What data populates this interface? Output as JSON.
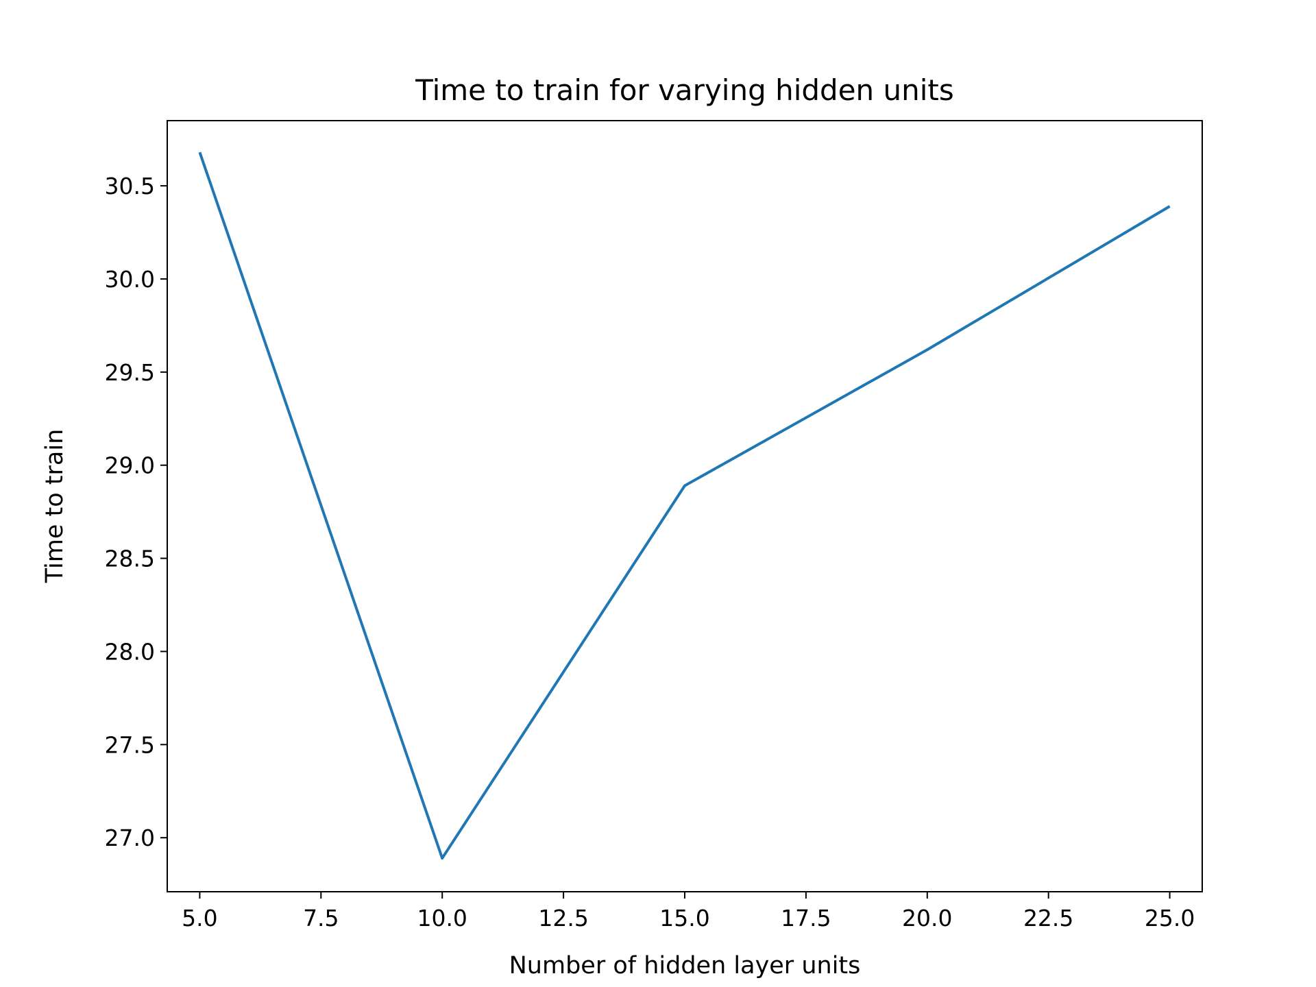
{
  "chart_data": {
    "type": "line",
    "title": "Time to train for varying hidden units",
    "xlabel": "Number of hidden layer units",
    "ylabel": "Time to train",
    "xlim": [
      4.33,
      25.67
    ],
    "ylim": [
      26.71,
      30.85
    ],
    "x_ticks": [
      5.0,
      7.5,
      10.0,
      12.5,
      15.0,
      17.5,
      20.0,
      22.5,
      25.0
    ],
    "x_tick_labels": [
      "5.0",
      "7.5",
      "10.0",
      "12.5",
      "15.0",
      "17.5",
      "20.0",
      "22.5",
      "25.0"
    ],
    "y_ticks": [
      27.0,
      27.5,
      28.0,
      28.5,
      29.0,
      29.5,
      30.0,
      30.5
    ],
    "y_tick_labels": [
      "27.0",
      "27.5",
      "28.0",
      "28.5",
      "29.0",
      "29.5",
      "30.0",
      "30.5"
    ],
    "grid": false,
    "legend": "none",
    "series": [
      {
        "x": [
          5,
          10,
          15,
          20,
          25
        ],
        "y": [
          30.68,
          26.89,
          28.89,
          29.62,
          30.39
        ],
        "color": "#1f77b4"
      }
    ]
  }
}
